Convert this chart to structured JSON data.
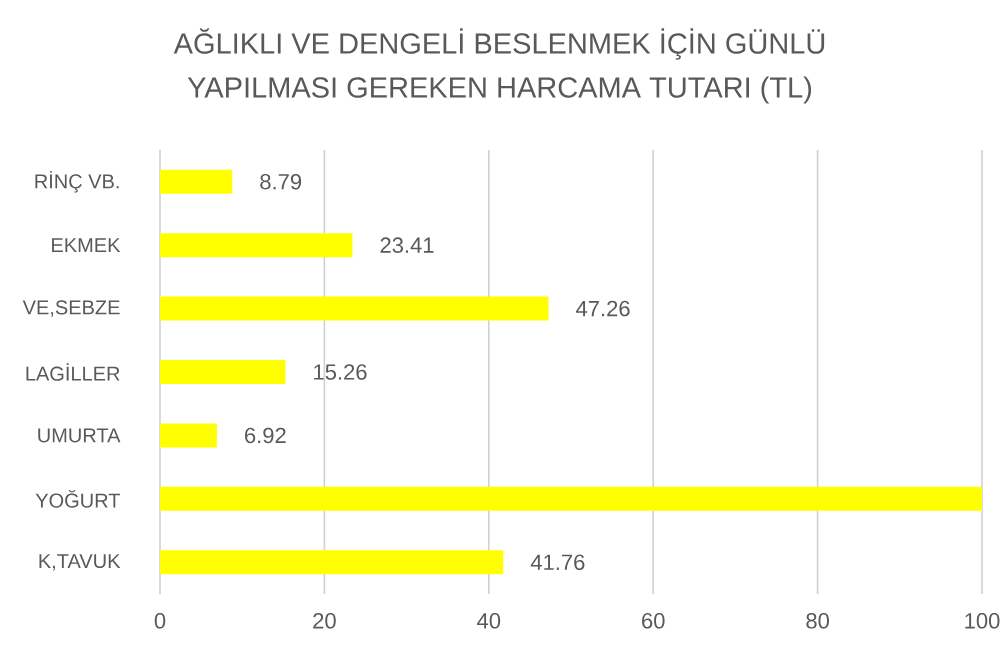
{
  "chart_data": {
    "type": "bar",
    "orientation": "horizontal",
    "title": "AĞLIKLI VE DENGELİ BESLENMEK İÇİN GÜNLÜ",
    "subtitle": "YAPILMASI GEREKEN HARCAMA TUTARI (TL)",
    "categories": [
      "RİNÇ VB.",
      "EKMEK",
      "VE,SEBZE",
      "LAGİLLER",
      "UMURTA",
      "YOĞURT",
      "K,TAVUK"
    ],
    "values": [
      8.79,
      23.41,
      47.26,
      15.26,
      6.92,
      100,
      41.76
    ],
    "value_labels": [
      "8.79",
      "23.41",
      "47.26",
      "15.26",
      "6.92",
      null,
      "41.76"
    ],
    "color": "#ffff00",
    "xlim": [
      0,
      100
    ],
    "xticks": [
      0,
      20,
      40,
      60,
      80,
      100
    ],
    "grid": "x"
  }
}
